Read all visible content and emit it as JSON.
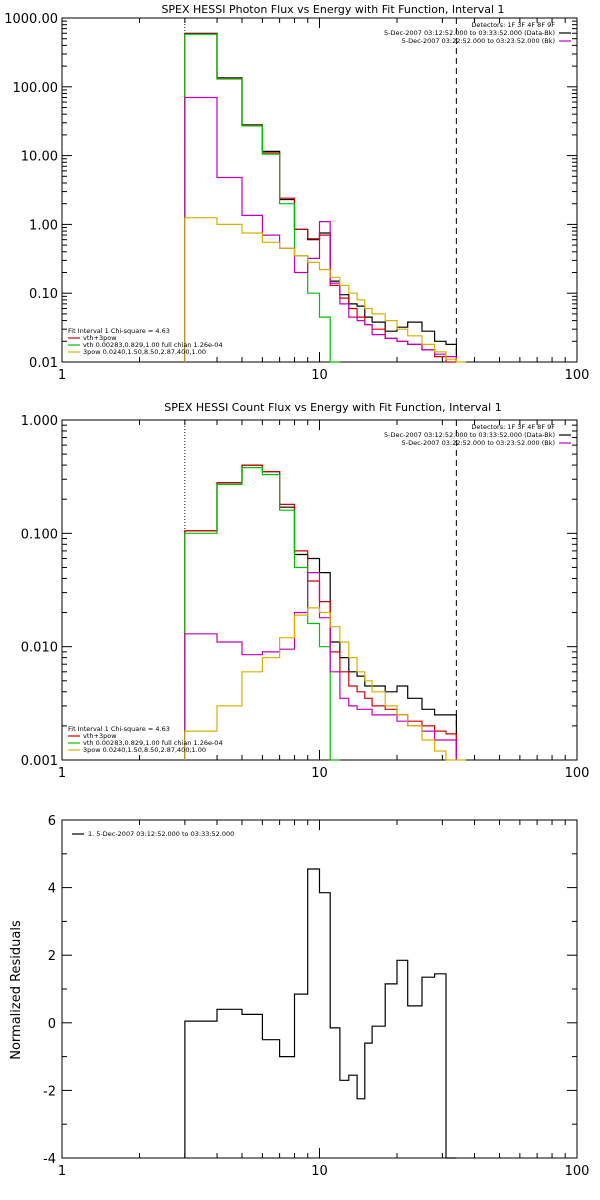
{
  "chart_data": [
    {
      "type": "line",
      "title": "SPEX HESSI Photon Flux vs Energy with Fit Function, Interval 1",
      "xscale": "log",
      "yscale": "log",
      "xlim": [
        1,
        100
      ],
      "ylim": [
        0.01,
        1000
      ],
      "xticks": [
        "1",
        "10",
        "100"
      ],
      "yticks": [
        "0.01",
        "0.10",
        "1.00",
        "10.00",
        "100.00",
        "1000.00"
      ],
      "grid": false,
      "vlines": [
        {
          "x": 3,
          "style": "dotted"
        },
        {
          "x": 34,
          "style": "dashed"
        }
      ],
      "legend_tr": {
        "position": "top-right",
        "lines": [
          "Detectors: 1F 3F 4F 8F 9F",
          "5-Dec-2007 03:12:52.000 to 03:33:52.000 (Data-Bk)",
          "5-Dec-2007 03:22:52.000 to 03:23:52.000 (Bk)"
        ],
        "colors": [
          "#000000",
          "#000000",
          "#c000c0"
        ]
      },
      "legend_bl": {
        "position": "bottom-left",
        "lines": [
          "Fit Interval 1   Chi-square = 4.63",
          "vth+3pow",
          "vth 0.00283,0.829,1.00  full chian 1.26e-04",
          "3pow 0.0240,1.50,8.50,2.87,400,1.00"
        ],
        "colors": [
          "#000000",
          "#d00000",
          "#00c000",
          "#d8b000"
        ]
      },
      "edges": [
        3,
        4,
        5,
        6,
        7,
        8,
        9,
        10,
        11,
        12,
        13,
        14,
        15,
        16,
        18,
        20,
        22,
        25,
        28,
        31,
        34,
        37,
        40
      ],
      "series": [
        {
          "color": "#000000",
          "values": [
            600,
            135,
            28,
            11.5,
            2.3,
            0.85,
            0.6,
            0.75,
            0.15,
            0.095,
            0.07,
            0.065,
            0.045,
            0.038,
            0.028,
            0.032,
            0.038,
            0.028,
            0.02,
            0.018,
            null,
            null
          ]
        },
        {
          "color": "#d00000",
          "values": [
            590,
            132,
            27.5,
            11,
            2.4,
            0.85,
            0.62,
            0.7,
            0.13,
            0.085,
            0.06,
            0.045,
            0.035,
            0.03,
            0.022,
            0.02,
            0.018,
            0.015,
            0.012,
            0.01,
            null,
            null
          ]
        },
        {
          "color": "#00c000",
          "values": [
            580,
            130,
            27,
            10.5,
            2.0,
            0.35,
            0.1,
            0.045,
            0.01,
            null,
            null,
            null,
            null,
            null,
            null,
            null,
            null,
            null,
            null,
            null,
            null,
            null
          ]
        },
        {
          "color": "#c000c0",
          "values": [
            70,
            4.8,
            1.35,
            0.7,
            0.45,
            0.2,
            0.32,
            1.1,
            0.14,
            0.07,
            0.045,
            0.04,
            0.035,
            0.025,
            0.022,
            0.02,
            0.018,
            0.015,
            0.013,
            0.012,
            null,
            null
          ]
        },
        {
          "color": "#d8b000",
          "values": [
            1.25,
            1.0,
            0.75,
            0.55,
            0.45,
            0.35,
            0.28,
            0.22,
            0.17,
            0.13,
            0.1,
            0.08,
            0.06,
            0.05,
            0.04,
            0.03,
            0.024,
            0.018,
            0.014,
            0.011,
            0.01,
            null
          ]
        }
      ]
    },
    {
      "type": "line",
      "title": "SPEX HESSI Count Flux vs Energy with Fit Function, Interval 1",
      "xscale": "log",
      "yscale": "log",
      "xlim": [
        1,
        100
      ],
      "ylim": [
        0.001,
        1
      ],
      "xticks": [
        "1",
        "10",
        "100"
      ],
      "yticks": [
        "0.001",
        "0.010",
        "0.100",
        "1.000"
      ],
      "grid": false,
      "vlines": [
        {
          "x": 3,
          "style": "dotted"
        },
        {
          "x": 34,
          "style": "dashed"
        }
      ],
      "legend_tr": {
        "position": "top-right",
        "lines": [
          "Detectors: 1F 3F 4F 8F 9F",
          "5-Dec-2007 03:12:52.000 to 03:33:52.000 (Data-Bk)",
          "5-Dec-2007 03:22:52.000 to 03:23:52.000 (Bk)"
        ],
        "colors": [
          "#000000",
          "#000000",
          "#c000c0"
        ]
      },
      "legend_bl": {
        "position": "bottom-left",
        "lines": [
          "Fit Interval 1   Chi-square = 4.63",
          "vth+3pow",
          "vth 0.00283,0.829,1.00  full chian 1.26e-04",
          "3pow 0.0240,1.50,8.50,2.87,400,1.00"
        ],
        "colors": [
          "#000000",
          "#d00000",
          "#00c000",
          "#d8b000"
        ]
      },
      "edges": [
        3,
        4,
        5,
        6,
        7,
        8,
        9,
        10,
        11,
        12,
        13,
        14,
        15,
        16,
        18,
        20,
        22,
        25,
        28,
        31,
        34,
        37,
        40
      ],
      "series": [
        {
          "color": "#000000",
          "values": [
            0.105,
            0.28,
            0.4,
            0.35,
            0.17,
            0.065,
            0.06,
            0.045,
            0.011,
            0.008,
            0.006,
            0.0055,
            0.0045,
            0.0045,
            0.004,
            0.0045,
            0.0035,
            0.0028,
            0.0025,
            0.0025,
            null,
            null
          ]
        },
        {
          "color": "#d00000",
          "values": [
            0.105,
            0.28,
            0.4,
            0.35,
            0.18,
            0.07,
            0.038,
            0.025,
            0.009,
            0.006,
            0.0045,
            0.004,
            0.0035,
            0.003,
            0.0028,
            0.0025,
            0.0022,
            0.002,
            0.0018,
            0.0017,
            null,
            null
          ]
        },
        {
          "color": "#00c000",
          "values": [
            0.1,
            0.27,
            0.38,
            0.33,
            0.16,
            0.05,
            0.016,
            0.01,
            0.001,
            null,
            null,
            null,
            null,
            null,
            null,
            null,
            null,
            null,
            null,
            null,
            null,
            null
          ]
        },
        {
          "color": "#c000c0",
          "values": [
            0.013,
            0.011,
            0.0085,
            0.009,
            0.0095,
            0.02,
            0.045,
            0.018,
            0.006,
            0.0035,
            0.003,
            0.0028,
            0.0028,
            0.0025,
            0.0025,
            0.0022,
            0.002,
            0.0018,
            0.0015,
            0.0015,
            null,
            null
          ]
        },
        {
          "color": "#d8b000",
          "values": [
            0.0018,
            0.003,
            0.006,
            0.008,
            0.012,
            0.019,
            0.022,
            0.02,
            0.015,
            0.011,
            0.008,
            0.006,
            0.005,
            0.004,
            0.003,
            0.0025,
            0.002,
            0.0015,
            0.0012,
            0.001,
            0.001,
            null
          ]
        }
      ]
    },
    {
      "type": "line",
      "title": "",
      "ylabel": "Normalized Residuals",
      "xscale": "log",
      "yscale": "linear",
      "xlim": [
        1,
        100
      ],
      "ylim": [
        -4,
        6
      ],
      "xticks": [
        "1",
        "10",
        "100"
      ],
      "yticks": [
        "-4",
        "-2",
        "0",
        "2",
        "4",
        "6"
      ],
      "grid": false,
      "legend_tl": {
        "position": "top-left",
        "lines": [
          "1. 5-Dec-2007 03:12:52.000 to 03:33:52.000"
        ],
        "colors": [
          "#000000"
        ]
      },
      "edges": [
        3,
        4,
        5,
        6,
        7,
        8,
        9,
        10,
        11,
        12,
        13,
        14,
        15,
        16,
        18,
        20,
        22,
        25,
        28,
        31,
        34
      ],
      "series": [
        {
          "color": "#000000",
          "values": [
            0.05,
            0.4,
            0.25,
            -0.5,
            -1.0,
            0.85,
            4.55,
            3.85,
            -0.15,
            -1.7,
            -1.55,
            -2.25,
            -0.6,
            -0.1,
            1.15,
            1.85,
            0.5,
            1.35,
            1.45,
            -4.0
          ]
        }
      ]
    }
  ]
}
